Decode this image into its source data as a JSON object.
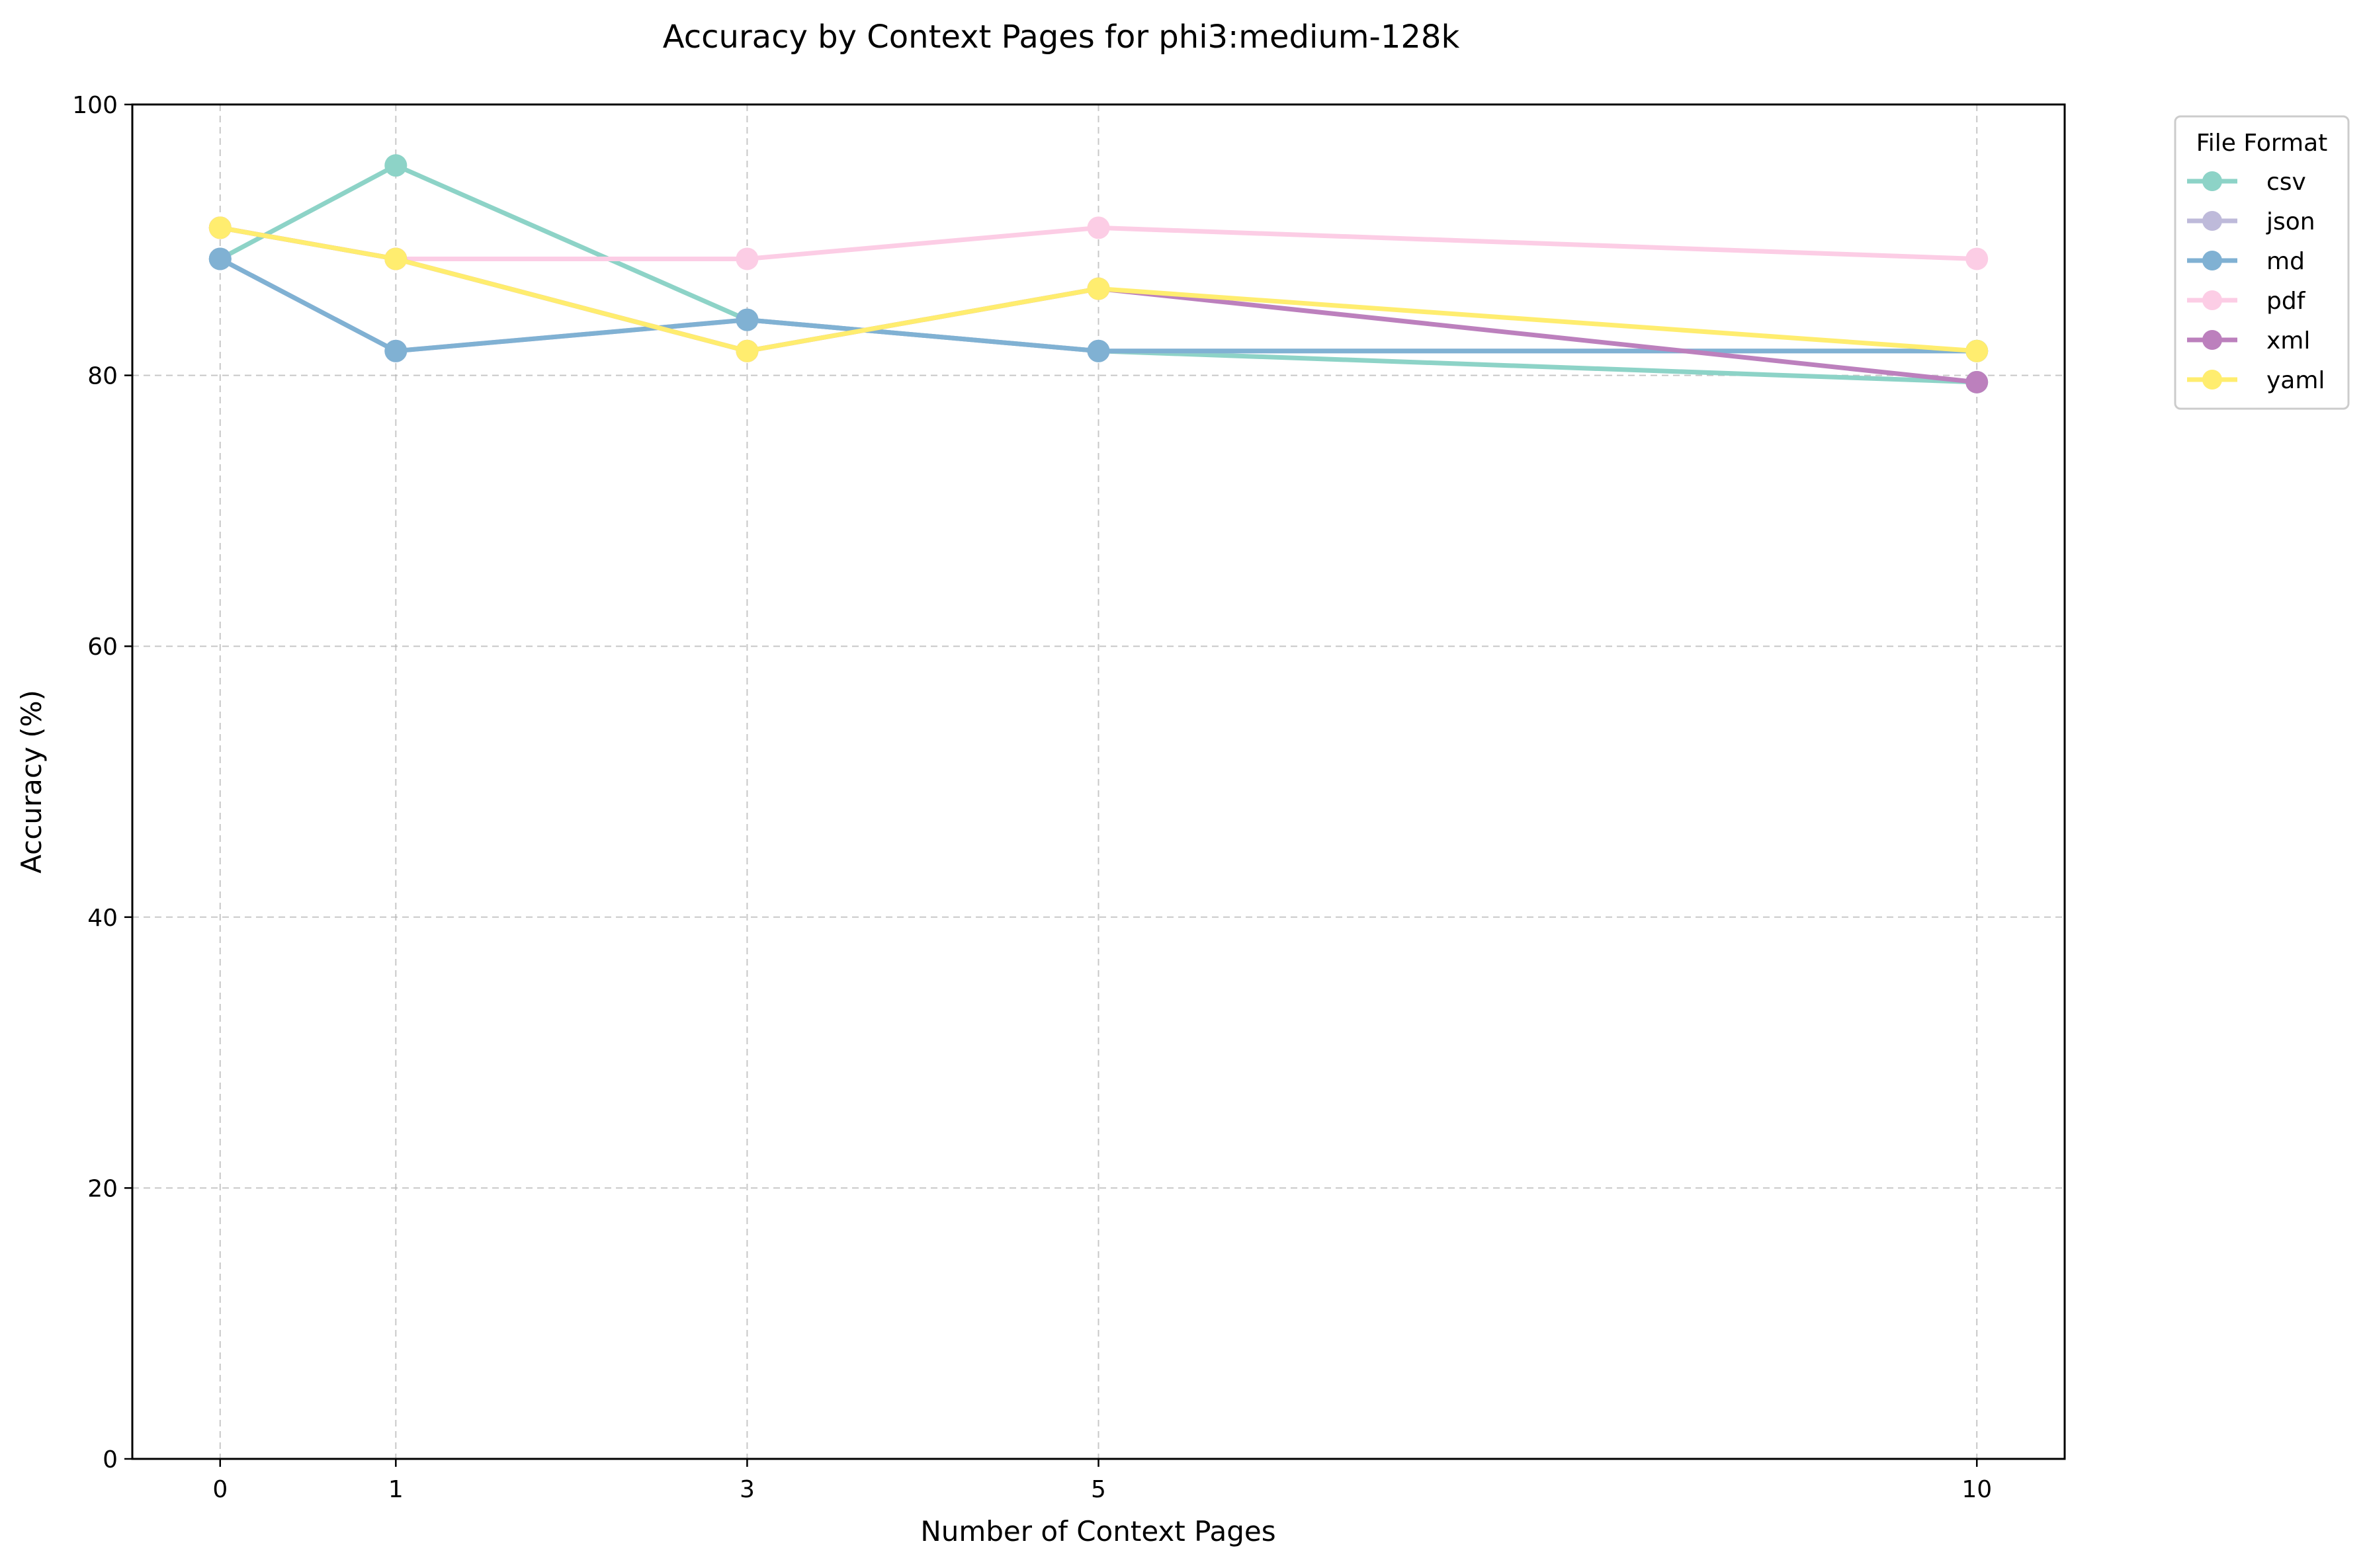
{
  "chart_data": {
    "type": "line",
    "title": "Accuracy by Context Pages for phi3:medium-128k",
    "xlabel": "Number of Context Pages",
    "ylabel": "Accuracy (%)",
    "x": [
      0,
      1,
      3,
      5,
      10
    ],
    "xticks": [
      "0",
      "1",
      "3",
      "5",
      "10"
    ],
    "xlim": [
      -0.5,
      10.5
    ],
    "ylim": [
      0,
      100
    ],
    "yticks": [
      "0",
      "20",
      "40",
      "60",
      "80",
      "100"
    ],
    "grid": true,
    "legend": {
      "title": "File Format",
      "placement": "outside top-right"
    },
    "series": [
      {
        "name": "csv",
        "color": "#8dd3c7",
        "values": [
          88.6,
          95.5,
          84.1,
          81.8,
          79.5
        ]
      },
      {
        "name": "json",
        "color": "#bebada",
        "values": [
          88.6,
          81.8,
          84.1,
          81.8,
          81.8
        ]
      },
      {
        "name": "md",
        "color": "#80b1d3",
        "values": [
          88.6,
          81.8,
          84.1,
          81.8,
          81.8
        ]
      },
      {
        "name": "pdf",
        "color": "#fccde5",
        "values": [
          90.9,
          88.6,
          88.6,
          90.9,
          88.6
        ]
      },
      {
        "name": "xml",
        "color": "#bc80bd",
        "values": [
          90.9,
          88.6,
          81.8,
          86.4,
          79.5
        ]
      },
      {
        "name": "yaml",
        "color": "#ffed6f",
        "values": [
          90.9,
          88.6,
          81.8,
          86.4,
          81.8
        ]
      }
    ]
  }
}
